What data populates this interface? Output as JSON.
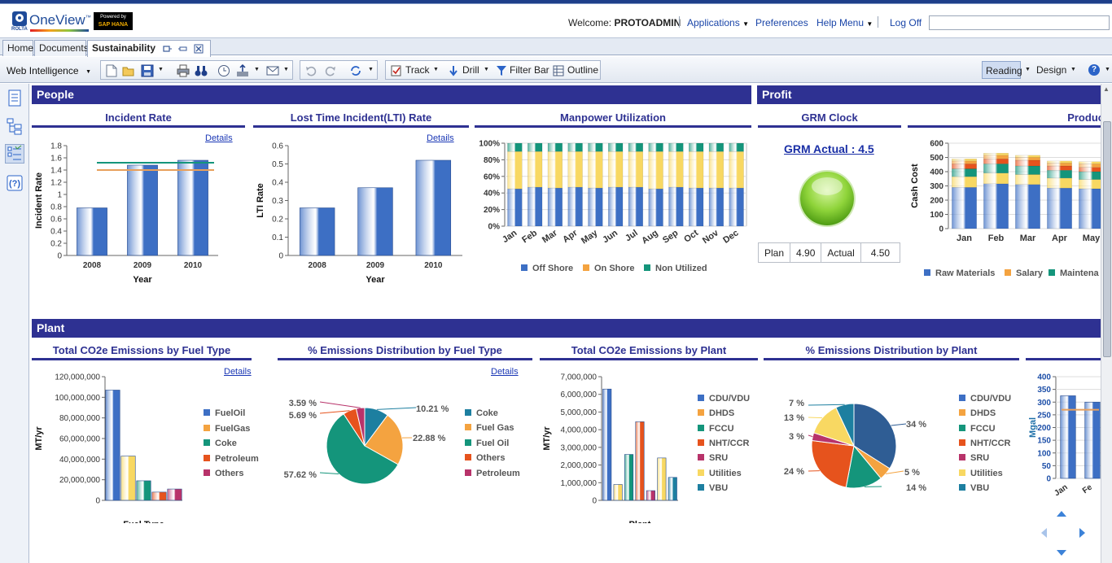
{
  "app": {
    "logo_text": "OneView",
    "logo_tm": "™",
    "rolta_text": "ROLTA",
    "powered_text": "Powered by",
    "hana_text": "SAP HANA"
  },
  "header": {
    "welcome_label": "Welcome:",
    "user": "PROTOADMIN",
    "menu": [
      "Applications",
      "Preferences",
      "Help Menu"
    ],
    "logoff": "Log Off",
    "search_value": ""
  },
  "tabs": [
    "Home",
    "Documents",
    "Sustainability"
  ],
  "toolbar": {
    "web_intelligence": "Web Intelligence",
    "track": "Track",
    "drill": "Drill",
    "filter_bar": "Filter Bar",
    "outline": "Outline",
    "reading": "Reading",
    "design": "Design"
  },
  "sections": {
    "people": "People",
    "profit": "Profit",
    "plant": "Plant"
  },
  "details_label": "Details",
  "charts": {
    "incident": {
      "title": "Incident Rate",
      "xlabel": "Year",
      "ylabel": "Incident Rate"
    },
    "lti": {
      "title": "Lost Time Incident(LTI) Rate",
      "xlabel": "Year",
      "ylabel": "LTI Rate"
    },
    "manpower": {
      "title": "Manpower Utilization"
    },
    "grm": {
      "title": "GRM Clock",
      "actual_link": "GRM Actual : 4.5",
      "plan_label": "Plan",
      "plan_value": "4.90",
      "actual_label": "Actual",
      "actual_value": "4.50"
    },
    "production": {
      "title": "Produc",
      "ylabel": "Cash Cost"
    },
    "co2_fuel": {
      "title": "Total CO2e Emissions by Fuel Type",
      "xlabel": "Fuel Type",
      "ylabel": "MT/yr"
    },
    "pct_fuel": {
      "title": "% Emissions Distribution by Fuel Type"
    },
    "co2_plant": {
      "title": "Total CO2e Emissions by Plant",
      "xlabel": "Plant",
      "ylabel": "MT/yr"
    },
    "pct_plant": {
      "title": "% Emissions Distribution by Plant"
    },
    "mgal": {
      "ylabel": "Mgal"
    }
  },
  "colors": {
    "header_bar": "#2e3192",
    "blue": "#3d6fc4",
    "orange": "#f4a340",
    "teal": "#14957b",
    "yellow": "#f8d862",
    "red_orange": "#e6531d",
    "magenta": "#b8336a",
    "dark_teal": "#1d7fa0",
    "target_green": "#14957b",
    "target_orange": "#e8a05c"
  },
  "chart_data": [
    {
      "id": "incident",
      "type": "bar",
      "categories": [
        "2008",
        "2009",
        "2010"
      ],
      "values": [
        0.78,
        1.48,
        1.56
      ],
      "ylim": [
        0,
        1.8
      ],
      "yticks": [
        "0",
        "0.2",
        "0.4",
        "0.6",
        "0.8",
        "1",
        "1.2",
        "1.4",
        "1.6",
        "1.8"
      ],
      "reference_lines": [
        1.52,
        1.4
      ]
    },
    {
      "id": "lti",
      "type": "bar",
      "categories": [
        "2008",
        "2009",
        "2010"
      ],
      "values": [
        0.26,
        0.37,
        0.52
      ],
      "ylim": [
        0,
        0.6
      ],
      "yticks": [
        "0",
        "0.1",
        "0.2",
        "0.3",
        "0.4",
        "0.5",
        "0.6"
      ]
    },
    {
      "id": "manpower",
      "type": "bar",
      "stacked": true,
      "categories": [
        "Jan",
        "Feb",
        "Mar",
        "Apr",
        "May",
        "Jun",
        "Jul",
        "Aug",
        "Sep",
        "Oct",
        "Nov",
        "Dec"
      ],
      "yticks": [
        "0%",
        "20%",
        "40%",
        "60%",
        "80%",
        "100%"
      ],
      "series": [
        {
          "name": "Off Shore",
          "values": [
            45,
            47,
            46,
            47,
            46,
            47,
            47,
            45,
            47,
            46,
            46,
            46
          ]
        },
        {
          "name": "On Shore",
          "values": [
            45,
            43,
            44,
            43,
            44,
            43,
            43,
            45,
            43,
            44,
            44,
            44
          ]
        },
        {
          "name": "Non Utilized",
          "values": [
            10,
            10,
            10,
            10,
            10,
            10,
            10,
            10,
            10,
            10,
            10,
            10
          ]
        }
      ]
    },
    {
      "id": "production",
      "type": "bar",
      "stacked": true,
      "categories": [
        "Jan",
        "Feb",
        "Mar",
        "Apr",
        "May"
      ],
      "ylim": [
        0,
        600
      ],
      "yticks": [
        "0",
        "100",
        "200",
        "300",
        "400",
        "500",
        "600"
      ],
      "series": [
        {
          "name": "Raw Materials",
          "values": [
            290,
            315,
            310,
            285,
            280
          ]
        },
        {
          "name": "Salary",
          "values": [
            75,
            75,
            70,
            70,
            65
          ]
        },
        {
          "name": "Maintena",
          "values": [
            55,
            65,
            60,
            55,
            55
          ]
        },
        {
          "name": "",
          "values": [
            35,
            35,
            40,
            30,
            30
          ]
        },
        {
          "name": "",
          "values": [
            20,
            25,
            20,
            20,
            25
          ]
        },
        {
          "name": "",
          "values": [
            15,
            15,
            15,
            15,
            15
          ]
        }
      ]
    },
    {
      "id": "co2_fuel",
      "type": "bar",
      "categories": [
        "FuelOil",
        "FuelGas",
        "Coke",
        "Petroleum",
        "Others"
      ],
      "values": [
        107000000,
        43000000,
        19000000,
        8000000,
        11000000
      ],
      "ylim": [
        0,
        120000000
      ],
      "yticks": [
        "0",
        "20,000,000",
        "40,000,000",
        "60,000,000",
        "80,000,000",
        "100,000,000",
        "120,000,000"
      ]
    },
    {
      "id": "pct_fuel",
      "type": "pie",
      "labels": [
        "10.21 %",
        "22.88 %",
        "57.62 %",
        "5.69 %",
        "3.59 %"
      ],
      "series_names": [
        "Coke",
        "Fuel Gas",
        "Fuel Oil",
        "Others",
        "Petroleum"
      ],
      "values": [
        10.21,
        22.88,
        57.62,
        5.69,
        3.59
      ]
    },
    {
      "id": "co2_plant",
      "type": "bar",
      "categories": [
        "CDU/VDU",
        "DHDS",
        "FCCU",
        "NHT/CCR",
        "SRU",
        "Utilities",
        "VBU"
      ],
      "values": [
        6300000,
        900000,
        2600000,
        4450000,
        550000,
        2400000,
        1300000
      ],
      "ylim": [
        0,
        7000000
      ],
      "yticks": [
        "0",
        "1,000,000",
        "2,000,000",
        "3,000,000",
        "4,000,000",
        "5,000,000",
        "6,000,000",
        "7,000,000"
      ]
    },
    {
      "id": "pct_plant",
      "type": "pie",
      "labels": [
        "34 %",
        "5 %",
        "14 %",
        "24 %",
        "3 %",
        "13 %",
        "7 %"
      ],
      "series_names": [
        "CDU/VDU",
        "DHDS",
        "FCCU",
        "NHT/CCR",
        "SRU",
        "Utilities",
        "VBU"
      ],
      "values": [
        34,
        5,
        14,
        24,
        3,
        13,
        7
      ]
    },
    {
      "id": "mgal",
      "type": "bar",
      "categories": [
        "Jan",
        "Fe"
      ],
      "values": [
        325,
        300
      ],
      "line_values": [
        270,
        270
      ],
      "ylim": [
        0,
        400
      ],
      "yticks": [
        "0",
        "50",
        "100",
        "150",
        "200",
        "250",
        "300",
        "350",
        "400"
      ]
    }
  ]
}
